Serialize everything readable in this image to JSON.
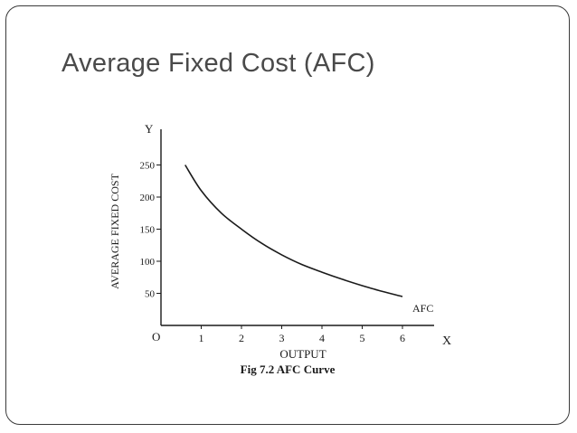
{
  "slide": {
    "title": "Average Fixed Cost (AFC)"
  },
  "chart_data": {
    "type": "line",
    "caption": "Fig 7.2 AFC Curve",
    "xlabel": "OUTPUT",
    "ylabel": "AVERAGE FIXED COST",
    "x_axis_letter": "X",
    "y_axis_letter": "Y",
    "origin_label": "O",
    "x_ticks": [
      "1",
      "2",
      "3",
      "4",
      "5",
      "6"
    ],
    "y_ticks": [
      "50",
      "100",
      "150",
      "200",
      "250"
    ],
    "xlim": [
      0,
      7
    ],
    "ylim": [
      0,
      270
    ],
    "grid": false,
    "series": [
      {
        "name": "AFC",
        "x": [
          0.6,
          1,
          1.5,
          2,
          2.5,
          3,
          3.5,
          4,
          4.5,
          5,
          5.5,
          6
        ],
        "y": [
          250,
          210,
          175,
          150,
          128,
          110,
          95,
          83,
          72,
          62,
          53,
          45
        ]
      }
    ],
    "line_color": "#1a1a1a"
  }
}
